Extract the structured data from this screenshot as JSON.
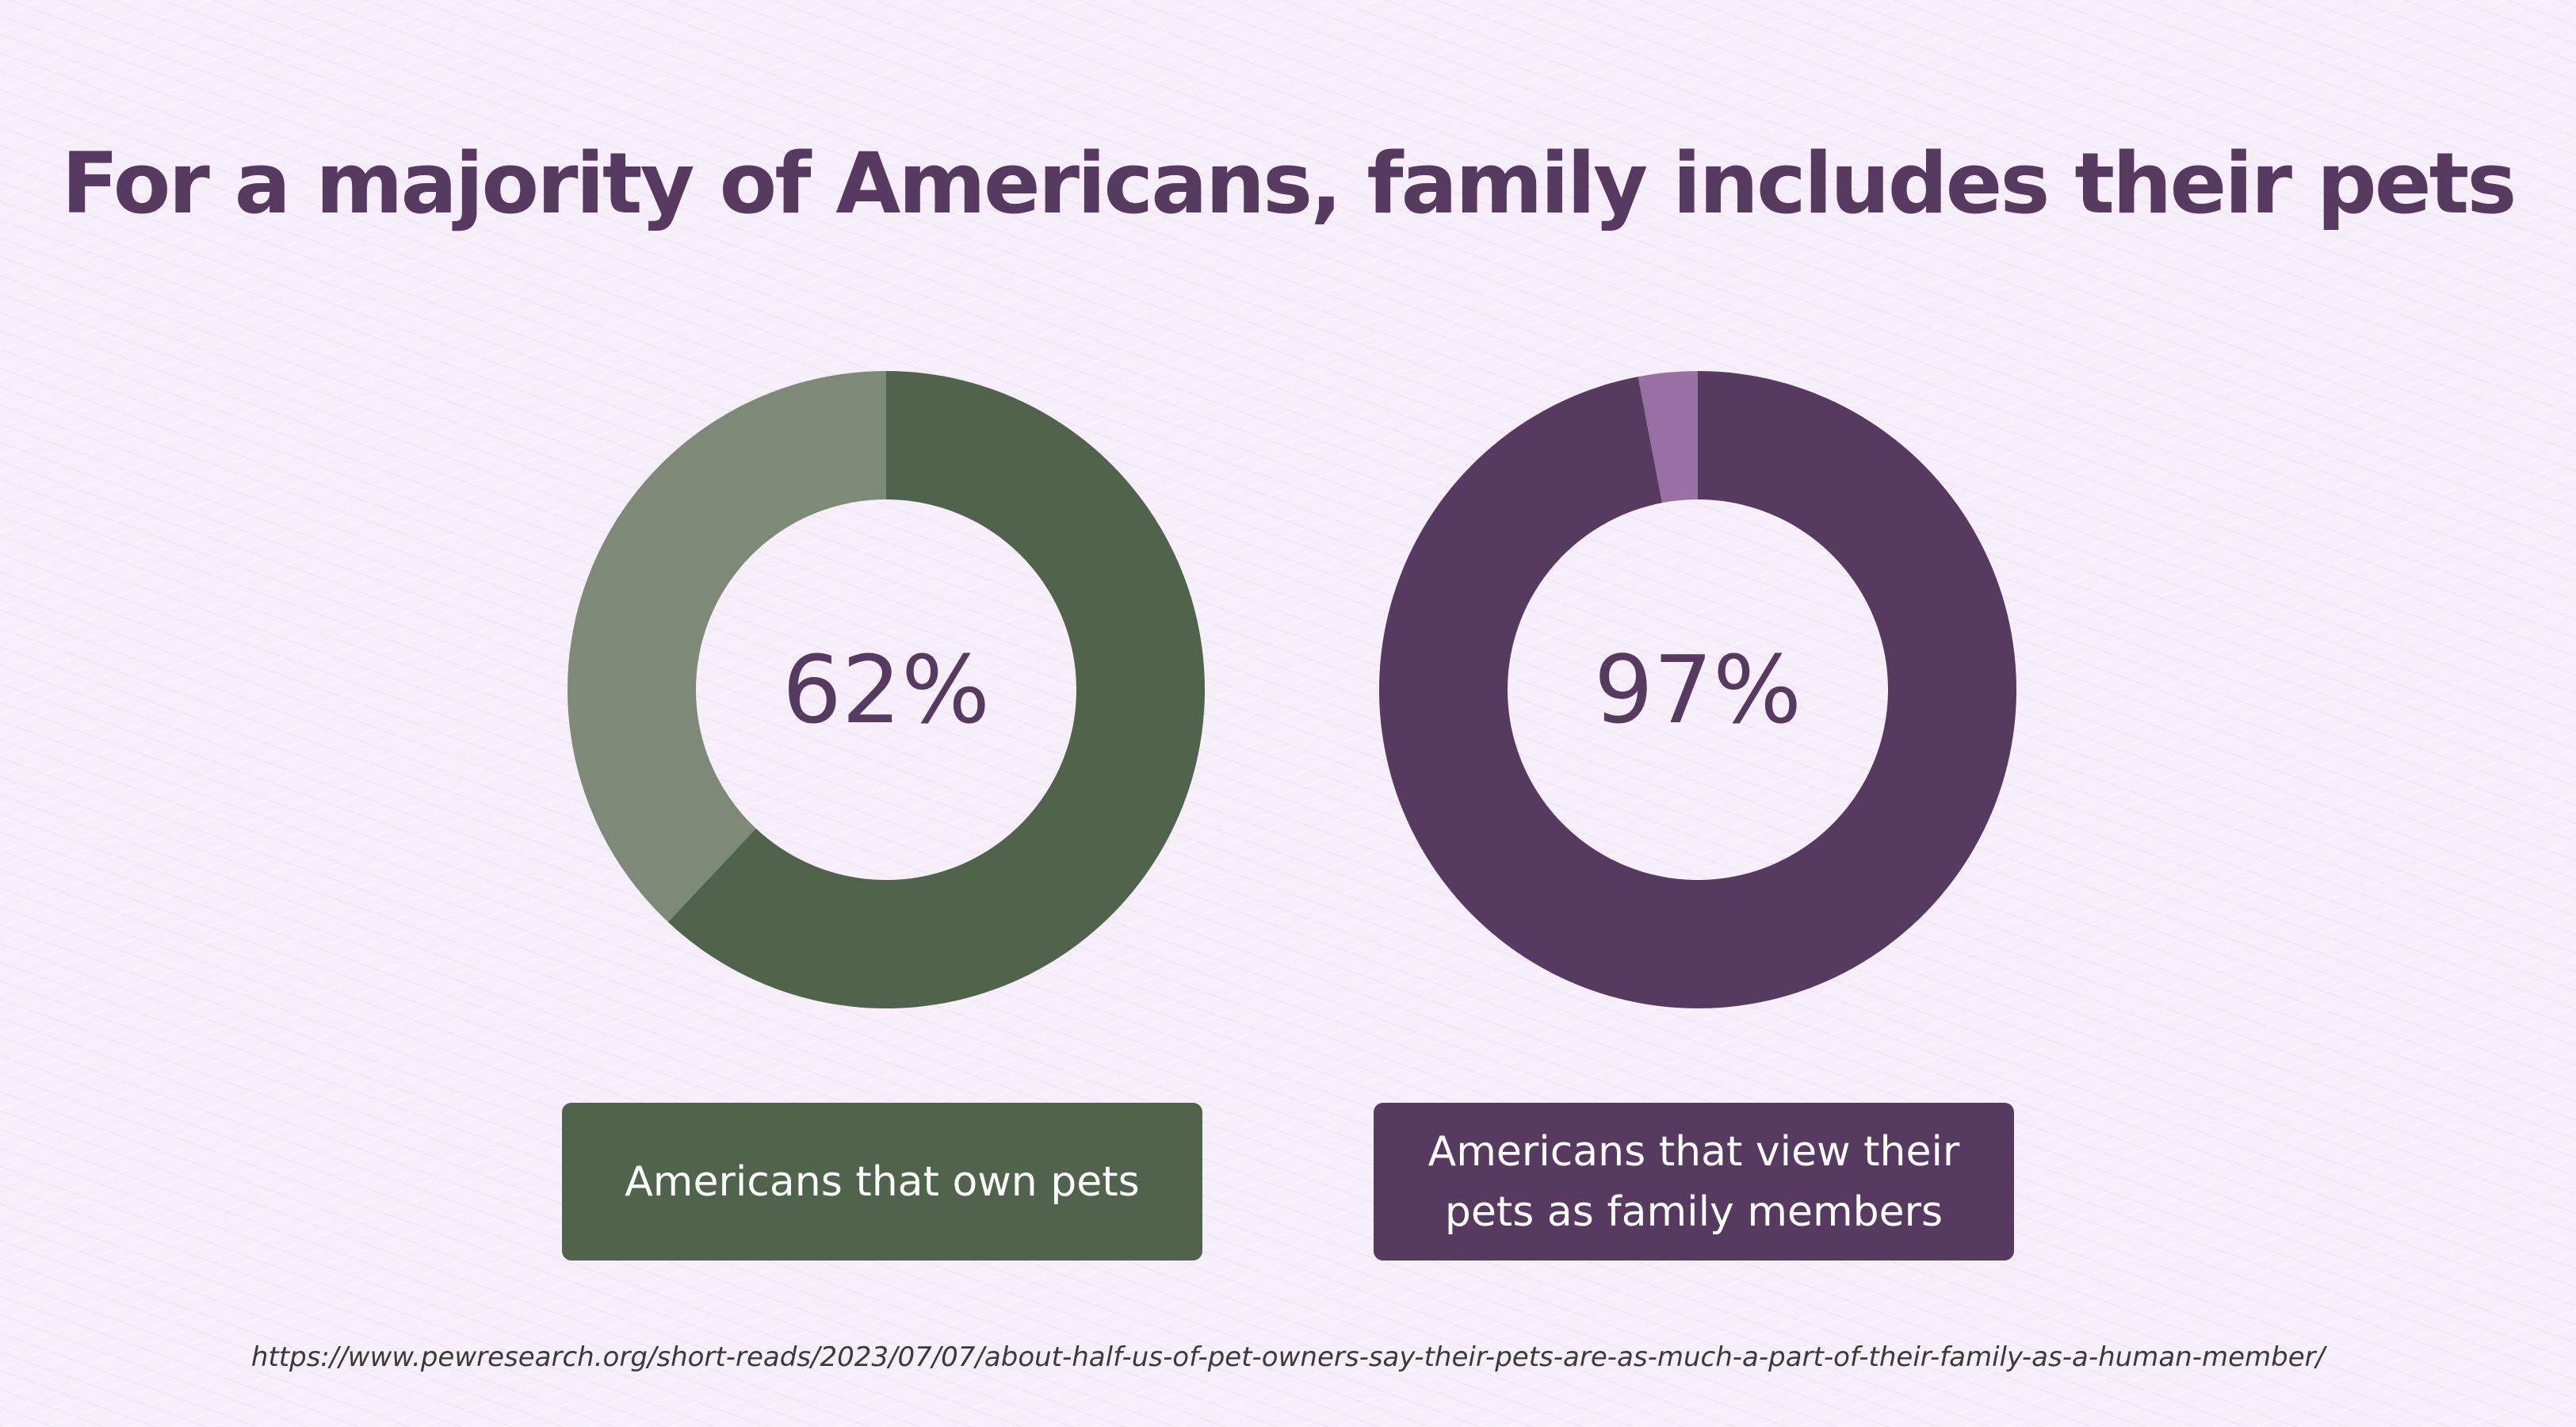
{
  "title": "For a majority of Americans, family includes their pets",
  "source": "https://www.pewresearch.org/short-reads/2023/07/07/about-half-us-of-pet-owners-say-their-pets-are-as-much-a-part-of-their-family-as-a-human-member/",
  "chart_data": [
    {
      "type": "pie",
      "style": "donut",
      "center_label": "62%",
      "caption": "Americans that own pets",
      "values": [
        62,
        38
      ],
      "colors": [
        "#50634b",
        "#7c8a77"
      ]
    },
    {
      "type": "pie",
      "style": "donut",
      "center_label": "97%",
      "caption": "Americans that view their pets as family members",
      "values": [
        97,
        3
      ],
      "colors": [
        "#573a5f",
        "#9870a3"
      ]
    }
  ]
}
